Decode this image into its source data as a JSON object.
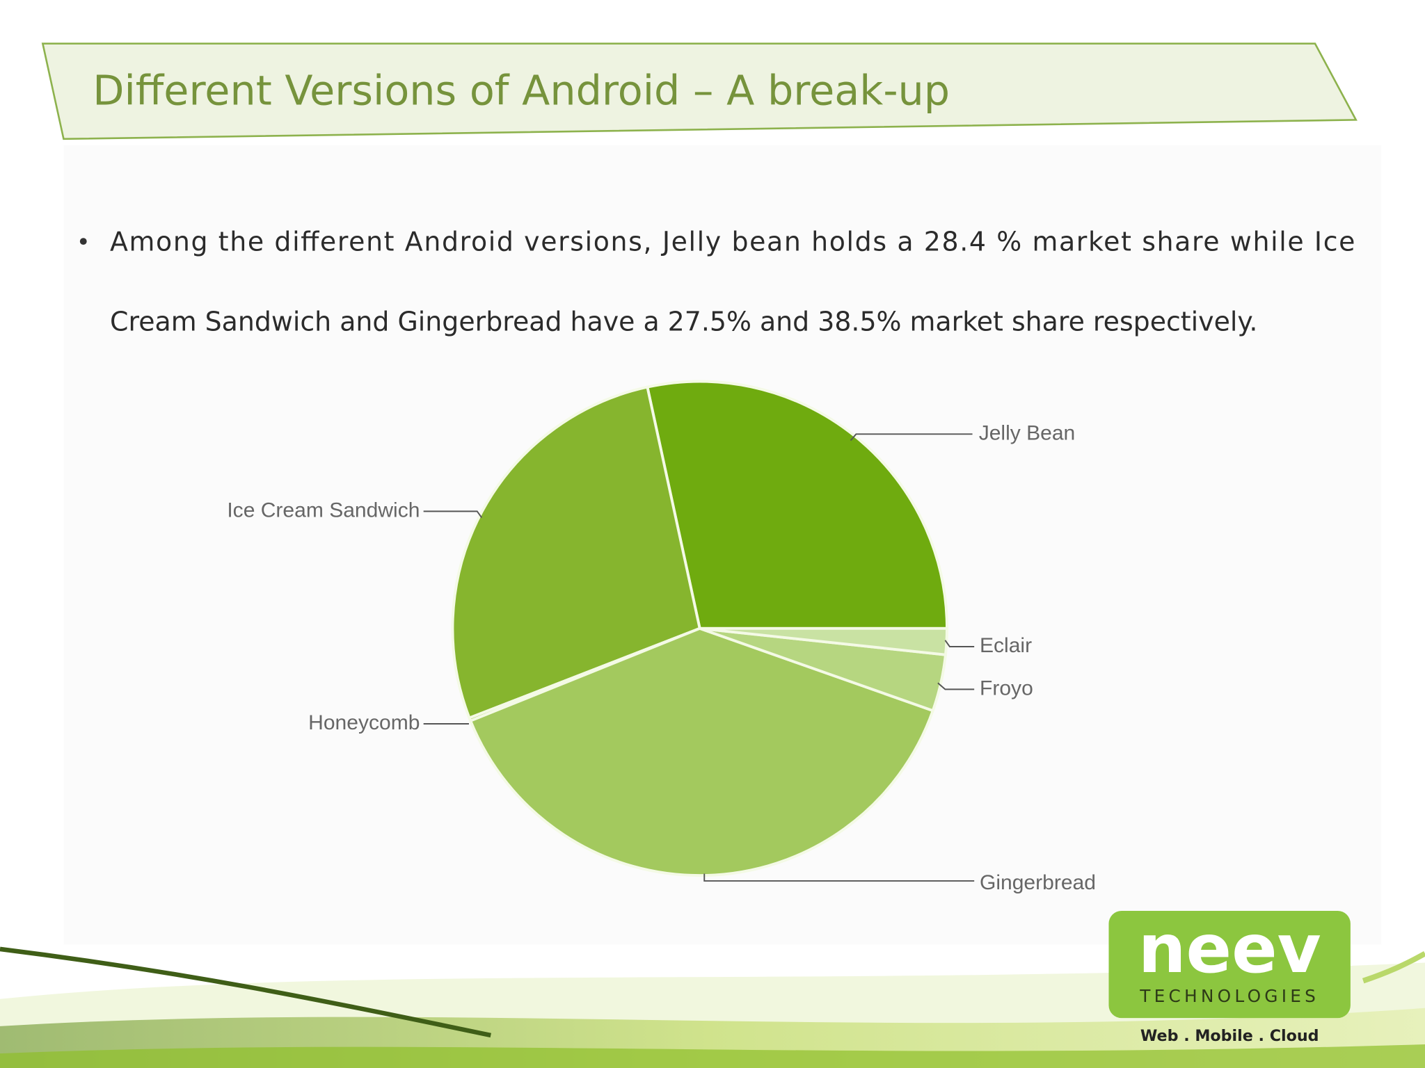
{
  "title": "Different Versions of Android – A break-up",
  "bullet_lines": [
    "Among the different Android versions, Jelly bean holds a 28.4 % market share while Ice",
    "Cream Sandwich and Gingerbread have a 27.5% and 38.5% market share respectively."
  ],
  "logo": {
    "name": "neev",
    "subtitle": "TECHNOLOGIES",
    "tagline": "Web . Mobile . Cloud"
  },
  "chart_data": {
    "type": "pie",
    "categories": [
      "Jelly Bean",
      "Ice Cream Sandwich",
      "Honeycomb",
      "Gingerbread",
      "Froyo",
      "Eclair"
    ],
    "values": [
      28.4,
      27.5,
      0.2,
      38.5,
      3.7,
      1.7
    ],
    "colors": [
      "#6fab0f",
      "#86b52e",
      "#98c04a",
      "#a3c95e",
      "#b6d680",
      "#c9e2a3"
    ]
  }
}
